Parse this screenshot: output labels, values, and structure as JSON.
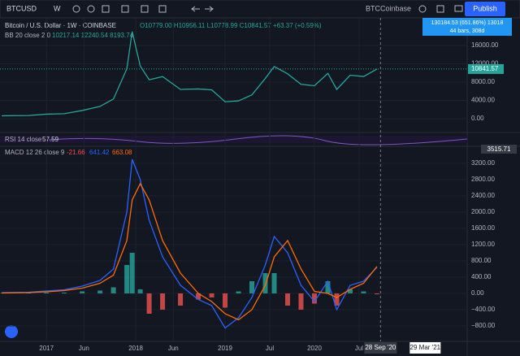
{
  "toolbar": {
    "symbol": "BTCUSD",
    "interval": "W",
    "compare": "BTCCoinbase",
    "publish": "Publish"
  },
  "price_pane": {
    "title": "Bitcoin / U.S. Dollar · 1W · COINBASE",
    "ohlc": "O10779.00 H10956.11 L10778.99 C10841.57 +63.37 (+0.59%)",
    "bb_label": "BB 20 close 2 0",
    "bb_values": "10217.14 12240.54 8193.74",
    "tooltip": [
      "130184.53 (651.86%) 13018",
      "44 bars, 308d"
    ],
    "x": [
      2016.5,
      2016.8,
      2017.0,
      2017.2,
      2017.4,
      2017.6,
      2017.75,
      2017.9,
      2017.96,
      2018.05,
      2018.15,
      2018.3,
      2018.5,
      2018.7,
      2018.85,
      2019.0,
      2019.15,
      2019.3,
      2019.45,
      2019.55,
      2019.7,
      2019.85,
      2020.0,
      2020.15,
      2020.25,
      2020.4,
      2020.55,
      2020.7
    ],
    "series": [
      {
        "name": "close",
        "color": "#26a69a",
        "values": [
          650,
          700,
          1000,
          1100,
          1800,
          2700,
          4300,
          10900,
          19000,
          11500,
          8500,
          9200,
          6400,
          6500,
          6300,
          3700,
          3900,
          5200,
          8800,
          11400,
          9800,
          7500,
          7200,
          9900,
          6400,
          9500,
          9200,
          10841.57
        ]
      }
    ],
    "ylim": [
      -3000,
      22000
    ],
    "yticks": [
      {
        "value": 0,
        "label": "0.00"
      },
      {
        "value": 4000,
        "label": "4000.00"
      },
      {
        "value": 8000,
        "label": "8000.00"
      },
      {
        "value": 12000,
        "label": "12000.00"
      },
      {
        "value": 16000,
        "label": "16000.00"
      }
    ]
  },
  "rsi_pane": {
    "label": "RSI 14 close",
    "value": "57.59"
  },
  "macd_pane": {
    "label": "MACD 12 26 close 9",
    "scale_tag": "3515.71",
    "x": [
      2016.5,
      2016.8,
      2017.0,
      2017.2,
      2017.4,
      2017.6,
      2017.75,
      2017.9,
      2017.96,
      2018.05,
      2018.15,
      2018.3,
      2018.5,
      2018.7,
      2018.85,
      2019.0,
      2019.15,
      2019.3,
      2019.45,
      2019.55,
      2019.7,
      2019.85,
      2020.0,
      2020.15,
      2020.25,
      2020.4,
      2020.55,
      2020.7
    ],
    "histogram": {
      "name": "histogram",
      "color": "#26a69a",
      "negative_color": "#ef5350",
      "values": [
        10,
        10,
        20,
        20,
        50,
        70,
        150,
        700,
        1000,
        100,
        -500,
        -400,
        -300,
        -150,
        -100,
        -350,
        50,
        300,
        500,
        500,
        -300,
        -400,
        -250,
        300,
        -300,
        100,
        50,
        -21.66
      ]
    },
    "series": [
      {
        "name": "macd",
        "color": "#2962ff",
        "values": [
          20,
          30,
          60,
          90,
          180,
          320,
          600,
          2000,
          3300,
          2800,
          1800,
          900,
          200,
          -150,
          -300,
          -850,
          -600,
          -100,
          700,
          1400,
          1000,
          200,
          -200,
          300,
          -400,
          200,
          300,
          641.42
        ]
      },
      {
        "name": "signal",
        "color": "#ff6d00",
        "values": [
          10,
          20,
          40,
          70,
          130,
          250,
          450,
          1300,
          2300,
          2700,
          2300,
          1300,
          500,
          0,
          -200,
          -500,
          -650,
          -400,
          200,
          900,
          1300,
          600,
          50,
          0,
          -100,
          100,
          250,
          663.08
        ]
      }
    ],
    "ylim": [
      -1180,
      3620
    ],
    "yticks": [
      {
        "value": 3200,
        "label": "3200.00"
      },
      {
        "value": 2800,
        "label": "2800.00"
      },
      {
        "value": 2400,
        "label": "2400.00"
      },
      {
        "value": 2000,
        "label": "2000.00"
      },
      {
        "value": 1600,
        "label": "1600.00"
      },
      {
        "value": 1200,
        "label": "1200.00"
      },
      {
        "value": 800,
        "label": "800.00"
      },
      {
        "value": 400,
        "label": "400.00"
      },
      {
        "value": 0,
        "label": "0.00"
      },
      {
        "value": -400,
        "label": "−400.00"
      },
      {
        "value": -800,
        "label": "−800.00"
      }
    ]
  },
  "time_axis": {
    "xlim": [
      2016.48,
      2021.71
    ],
    "xticks": [
      {
        "value": 2017,
        "label": "2017"
      },
      {
        "value": 2017.42,
        "label": "Jun"
      },
      {
        "value": 2018,
        "label": "2018"
      },
      {
        "value": 2018.42,
        "label": "Jun"
      },
      {
        "value": 2019,
        "label": "2019"
      },
      {
        "value": 2019.5,
        "label": "Jul"
      },
      {
        "value": 2020,
        "label": "2020"
      },
      {
        "value": 2020.5,
        "label": "Jul"
      }
    ],
    "cursor": {
      "value": 2020.74,
      "label": "28 Sep '20"
    },
    "end": {
      "value": 2021.24,
      "label": "29 Mar '21"
    }
  }
}
